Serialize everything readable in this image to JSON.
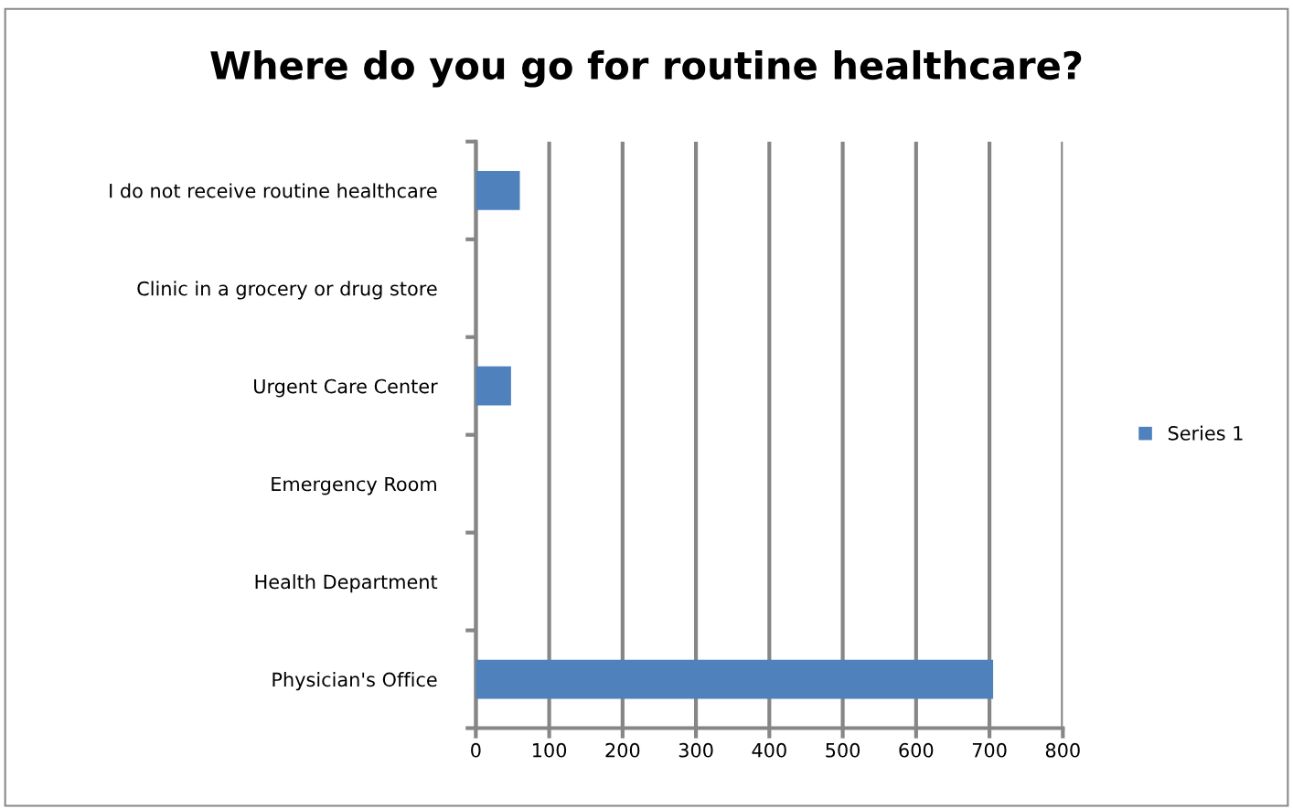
{
  "chart_data": {
    "type": "bar",
    "orientation": "horizontal",
    "title": "Where do you go for routine healthcare?",
    "categories": [
      "I do not receive routine healthcare",
      "Clinic in a grocery or drug store",
      "Urgent Care Center",
      "Emergency Room",
      "Health Department",
      "Physician's Office"
    ],
    "series": [
      {
        "name": "Series 1",
        "color": "#4f81bd",
        "values": [
          60,
          0,
          48,
          0,
          0,
          705
        ]
      }
    ],
    "xlim": [
      0,
      800
    ],
    "xticks": [
      0,
      100,
      200,
      300,
      400,
      500,
      600,
      700,
      800
    ],
    "grid": "x",
    "legend": "right"
  }
}
